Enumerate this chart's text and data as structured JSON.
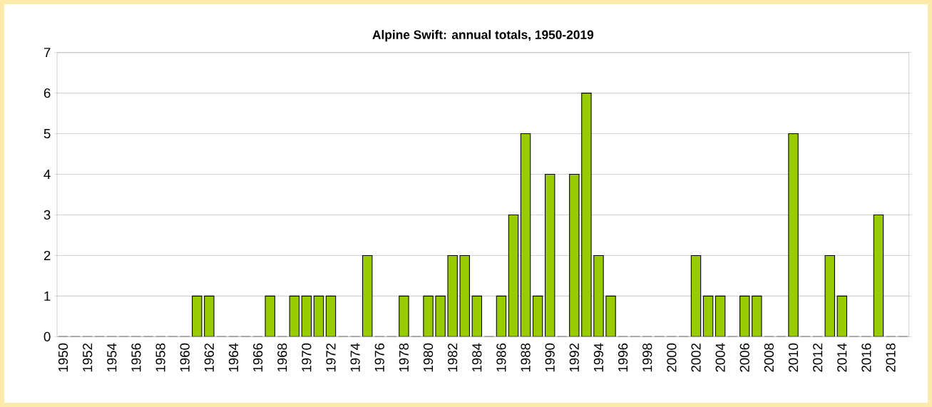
{
  "chart_data": {
    "type": "bar",
    "title": "Alpine Swift:  annual totals, 1950-2019",
    "categories": [
      "1950",
      null,
      "1952",
      null,
      "1954",
      null,
      "1956",
      null,
      "1958",
      null,
      "1960",
      null,
      "1962",
      null,
      "1964",
      null,
      "1966",
      null,
      "1968",
      null,
      "1970",
      null,
      "1972",
      null,
      "1974",
      null,
      "1976",
      null,
      "1978",
      null,
      "1980",
      null,
      "1982",
      null,
      "1984",
      null,
      "1986",
      null,
      "1988",
      null,
      "1990",
      null,
      "1992",
      null,
      "1994",
      null,
      "1996",
      null,
      "1998",
      null,
      "2000",
      null,
      "2002",
      null,
      "2004",
      null,
      "2006",
      null,
      "2008",
      null,
      "2010",
      null,
      "2012",
      null,
      "2014",
      null,
      "2016",
      null,
      "2018",
      null
    ],
    "values": [
      0,
      0,
      0,
      0,
      0,
      0,
      0,
      0,
      0,
      0,
      0,
      1,
      1,
      0,
      0,
      0,
      0,
      1,
      0,
      1,
      1,
      1,
      1,
      0,
      0,
      2,
      0,
      0,
      1,
      0,
      1,
      1,
      2,
      2,
      1,
      0,
      1,
      3,
      5,
      1,
      4,
      0,
      4,
      6,
      2,
      1,
      0,
      0,
      0,
      0,
      0,
      0,
      2,
      1,
      1,
      0,
      1,
      1,
      0,
      0,
      5,
      0,
      0,
      2,
      1,
      0,
      0,
      3,
      0,
      0
    ],
    "color": "#99cc00",
    "ylim": [
      0,
      7
    ],
    "yticks": [
      0,
      1,
      2,
      3,
      4,
      5,
      6,
      7
    ],
    "grid": "y"
  }
}
